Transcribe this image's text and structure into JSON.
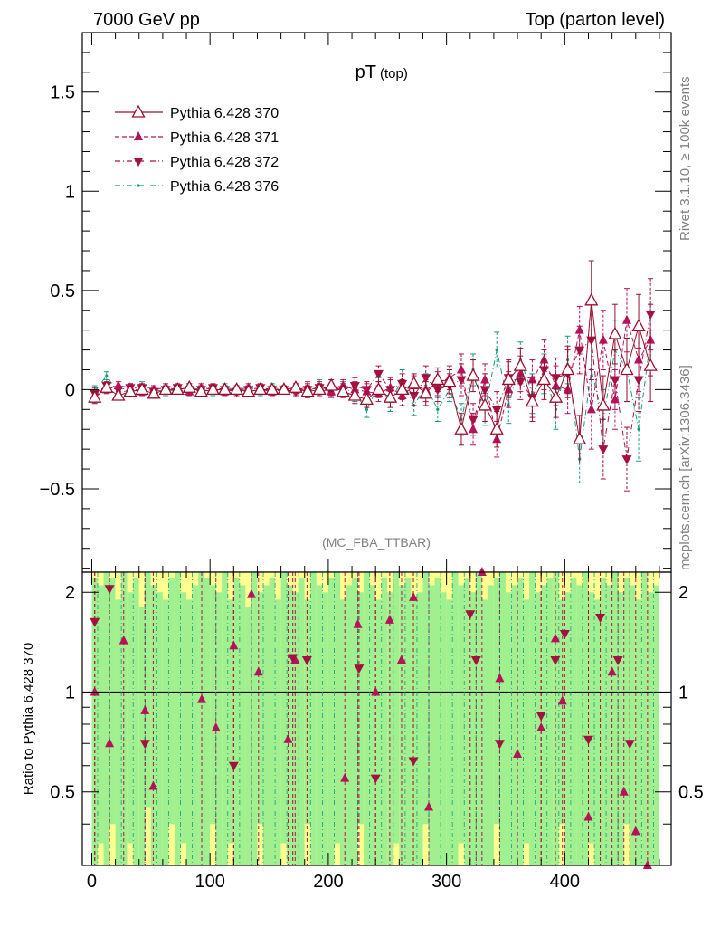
{
  "header": {
    "left": "7000 GeV pp",
    "right": "Top (parton level)"
  },
  "side_labels": {
    "rivet": "Rivet 3.1.10, ≥ 100k events",
    "mcplots": "mcplots.cern.ch [arXiv:1306.3436]"
  },
  "chart_data": {
    "type": "scatter",
    "title": "pT",
    "title_sub": "(top)",
    "watermark": "(MC_FBA_TTBAR)",
    "xlim": [
      -8,
      490
    ],
    "ylim": [
      -0.92,
      1.8
    ],
    "xticks": [
      0,
      100,
      200,
      300,
      400
    ],
    "yticks": [
      -0.5,
      0,
      0.5,
      1,
      1.5
    ],
    "ylabels": [
      "−0.5",
      "0",
      "0.5",
      "1",
      "1.5"
    ],
    "colors": {
      "s370": "#9b0e2e",
      "s371": "#b5125a",
      "s372": "#a3123f",
      "s376": "#169a80",
      "band_green": "#a0f090",
      "band_yellow": "#ffff90"
    },
    "series": [
      {
        "name": "Pythia 6.428 370",
        "marker": "triangle-up-open",
        "line": "solid",
        "x": [
          2.5,
          12.5,
          22.5,
          32.5,
          42.5,
          52.5,
          62.5,
          72.5,
          82.5,
          92.5,
          102.5,
          112.5,
          122.5,
          132.5,
          142.5,
          152.5,
          162.5,
          172.5,
          182.5,
          192.5,
          202.5,
          212.5,
          222.5,
          232.5,
          242.5,
          252.5,
          262.5,
          272.5,
          282.5,
          292.5,
          302.5,
          312.5,
          322.5,
          332.5,
          342.5,
          352.5,
          362.5,
          372.5,
          382.5,
          392.5,
          402.5,
          412.5,
          422.5,
          432.5,
          442.5,
          452.5,
          462.5,
          472.5
        ],
        "values": [
          -0.04,
          0.01,
          -0.03,
          -0.01,
          0.0,
          -0.02,
          0.0,
          0.0,
          0.01,
          -0.01,
          0.0,
          0.0,
          0.0,
          -0.01,
          0.0,
          0.0,
          0.0,
          0.01,
          -0.01,
          0.0,
          0.02,
          -0.01,
          -0.03,
          -0.05,
          0.0,
          -0.04,
          0.0,
          0.03,
          -0.02,
          0.05,
          0.04,
          -0.2,
          0.07,
          -0.08,
          -0.2,
          0.05,
          0.12,
          -0.06,
          0.05,
          -0.04,
          0.1,
          -0.25,
          0.45,
          -0.08,
          0.28,
          0.1,
          0.32,
          0.12
        ],
        "errors": [
          0.03,
          0.02,
          0.02,
          0.02,
          0.02,
          0.02,
          0.02,
          0.02,
          0.02,
          0.02,
          0.02,
          0.02,
          0.02,
          0.02,
          0.02,
          0.02,
          0.02,
          0.02,
          0.03,
          0.03,
          0.03,
          0.03,
          0.04,
          0.04,
          0.04,
          0.05,
          0.05,
          0.05,
          0.06,
          0.06,
          0.06,
          0.08,
          0.08,
          0.08,
          0.09,
          0.09,
          0.09,
          0.1,
          0.1,
          0.1,
          0.12,
          0.12,
          0.2,
          0.15,
          0.15,
          0.16,
          0.16,
          0.18
        ]
      },
      {
        "name": "Pythia 6.428 371",
        "marker": "triangle-up-filled",
        "line": "dashed",
        "x": [
          2.5,
          12.5,
          22.5,
          32.5,
          42.5,
          52.5,
          62.5,
          72.5,
          82.5,
          92.5,
          102.5,
          112.5,
          122.5,
          132.5,
          142.5,
          152.5,
          162.5,
          172.5,
          182.5,
          192.5,
          202.5,
          212.5,
          222.5,
          232.5,
          242.5,
          252.5,
          262.5,
          272.5,
          282.5,
          292.5,
          302.5,
          312.5,
          322.5,
          332.5,
          342.5,
          352.5,
          362.5,
          372.5,
          382.5,
          392.5,
          402.5,
          412.5,
          422.5,
          432.5,
          442.5,
          452.5,
          462.5,
          472.5
        ],
        "values": [
          -0.03,
          0.0,
          0.02,
          0.01,
          -0.01,
          0.0,
          0.01,
          0.0,
          -0.01,
          0.01,
          0.0,
          -0.01,
          0.0,
          0.01,
          0.0,
          -0.01,
          0.0,
          0.0,
          0.01,
          0.0,
          -0.01,
          0.02,
          0.0,
          -0.01,
          -0.02,
          0.01,
          -0.03,
          0.02,
          0.0,
          0.03,
          0.06,
          0.1,
          -0.2,
          0.05,
          -0.25,
          0.0,
          0.08,
          0.05,
          0.15,
          0.02,
          0.0,
          0.3,
          -0.1,
          0.25,
          -0.05,
          0.35,
          0.15,
          0.25
        ],
        "errors": [
          0.03,
          0.02,
          0.02,
          0.02,
          0.02,
          0.02,
          0.02,
          0.02,
          0.02,
          0.02,
          0.02,
          0.02,
          0.02,
          0.02,
          0.02,
          0.02,
          0.02,
          0.02,
          0.03,
          0.03,
          0.03,
          0.03,
          0.04,
          0.04,
          0.04,
          0.05,
          0.05,
          0.05,
          0.06,
          0.06,
          0.06,
          0.08,
          0.08,
          0.08,
          0.09,
          0.09,
          0.09,
          0.1,
          0.1,
          0.1,
          0.12,
          0.12,
          0.2,
          0.15,
          0.15,
          0.16,
          0.16,
          0.18
        ]
      },
      {
        "name": "Pythia 6.428 372",
        "marker": "triangle-down-filled",
        "line": "dashdot",
        "x": [
          2.5,
          12.5,
          22.5,
          32.5,
          42.5,
          52.5,
          62.5,
          72.5,
          82.5,
          92.5,
          102.5,
          112.5,
          122.5,
          132.5,
          142.5,
          152.5,
          162.5,
          172.5,
          182.5,
          192.5,
          202.5,
          212.5,
          222.5,
          232.5,
          242.5,
          252.5,
          262.5,
          272.5,
          282.5,
          292.5,
          302.5,
          312.5,
          322.5,
          332.5,
          342.5,
          352.5,
          362.5,
          372.5,
          382.5,
          392.5,
          402.5,
          412.5,
          422.5,
          432.5,
          442.5,
          452.5,
          462.5,
          472.5
        ],
        "values": [
          -0.02,
          0.02,
          0.0,
          0.01,
          0.01,
          -0.01,
          0.0,
          0.01,
          0.0,
          0.0,
          0.01,
          0.0,
          -0.01,
          0.0,
          0.01,
          0.0,
          0.0,
          -0.01,
          0.0,
          0.01,
          0.0,
          0.0,
          0.02,
          0.0,
          0.08,
          0.0,
          0.03,
          -0.03,
          0.06,
          0.0,
          0.02,
          0.05,
          -0.15,
          0.0,
          -0.1,
          0.06,
          0.04,
          -0.04,
          0.1,
          0.06,
          0.08,
          0.2,
          0.25,
          -0.3,
          0.05,
          -0.35,
          0.05,
          0.38
        ],
        "errors": [
          0.03,
          0.02,
          0.02,
          0.02,
          0.02,
          0.02,
          0.02,
          0.02,
          0.02,
          0.02,
          0.02,
          0.02,
          0.02,
          0.02,
          0.02,
          0.02,
          0.02,
          0.02,
          0.03,
          0.03,
          0.03,
          0.03,
          0.04,
          0.04,
          0.04,
          0.05,
          0.05,
          0.05,
          0.06,
          0.06,
          0.06,
          0.08,
          0.08,
          0.08,
          0.09,
          0.09,
          0.09,
          0.1,
          0.1,
          0.1,
          0.12,
          0.12,
          0.2,
          0.15,
          0.15,
          0.16,
          0.16,
          0.18
        ]
      },
      {
        "name": "Pythia 6.428 376",
        "marker": "dot",
        "line": "dashdot",
        "x": [
          2.5,
          12.5,
          22.5,
          32.5,
          42.5,
          52.5,
          62.5,
          72.5,
          82.5,
          92.5,
          102.5,
          112.5,
          122.5,
          132.5,
          142.5,
          152.5,
          162.5,
          172.5,
          182.5,
          192.5,
          202.5,
          212.5,
          222.5,
          232.5,
          242.5,
          252.5,
          262.5,
          272.5,
          282.5,
          292.5,
          302.5,
          312.5,
          322.5,
          332.5,
          342.5,
          352.5,
          362.5,
          372.5,
          382.5,
          392.5,
          402.5,
          412.5,
          422.5,
          432.5,
          442.5,
          452.5,
          462.5,
          472.5
        ],
        "values": [
          -0.01,
          0.07,
          -0.02,
          0.0,
          0.02,
          0.0,
          -0.01,
          0.0,
          0.01,
          0.0,
          -0.01,
          0.01,
          0.0,
          0.0,
          -0.01,
          0.01,
          0.0,
          0.0,
          -0.01,
          0.02,
          0.0,
          0.01,
          -0.02,
          -0.1,
          0.02,
          -0.06,
          0.05,
          -0.08,
          0.02,
          -0.1,
          0.0,
          -0.15,
          0.1,
          -0.1,
          0.2,
          -0.08,
          0.15,
          -0.02,
          0.08,
          -0.1,
          0.15,
          -0.35,
          0.1,
          -0.15,
          0.2,
          0.1,
          -0.2,
          0.25
        ],
        "errors": [
          0.03,
          0.02,
          0.02,
          0.02,
          0.02,
          0.02,
          0.02,
          0.02,
          0.02,
          0.02,
          0.02,
          0.02,
          0.02,
          0.02,
          0.02,
          0.02,
          0.02,
          0.02,
          0.03,
          0.03,
          0.03,
          0.03,
          0.04,
          0.04,
          0.04,
          0.05,
          0.05,
          0.05,
          0.06,
          0.06,
          0.06,
          0.08,
          0.08,
          0.08,
          0.09,
          0.09,
          0.09,
          0.1,
          0.1,
          0.1,
          0.12,
          0.12,
          0.2,
          0.15,
          0.15,
          0.16,
          0.16,
          0.18
        ]
      }
    ],
    "ratio": {
      "ylabel": "Ratio to Pythia 6.428 370",
      "ylim": [
        0.3,
        2.3
      ],
      "yticks": [
        0.5,
        1,
        2
      ],
      "ylabels": [
        "0.5",
        "1",
        "2"
      ],
      "reference": 1,
      "bins": [
        0,
        5,
        10,
        15,
        20,
        25,
        30,
        35,
        40,
        45,
        50,
        55,
        60,
        65,
        70,
        75,
        80,
        85,
        90,
        95,
        100,
        105,
        110,
        115,
        120,
        125,
        130,
        135,
        140,
        145,
        150,
        155,
        160,
        165,
        170,
        175,
        180,
        185,
        190,
        195,
        200,
        205,
        210,
        215,
        220,
        225,
        230,
        235,
        240,
        245,
        250,
        255,
        260,
        265,
        270,
        275,
        280,
        285,
        290,
        295,
        300,
        305,
        310,
        315,
        320,
        325,
        330,
        335,
        340,
        345,
        350,
        355,
        360,
        365,
        370,
        375,
        380,
        385,
        390,
        395,
        400,
        405,
        410,
        415,
        420,
        425,
        430,
        435,
        440,
        445,
        450,
        455,
        460,
        465,
        470,
        475,
        480
      ],
      "green_band_top": [
        2.2,
        2.1,
        2.3,
        2.2,
        1.9,
        2.3,
        2.0,
        2.2,
        1.8,
        2.3,
        2.1,
        2.0,
        1.9,
        2.2,
        2.3,
        2.0,
        1.9,
        2.1,
        2.3,
        2.2,
        2.1,
        2.0,
        2.3,
        1.9,
        2.2,
        2.1,
        1.8,
        2.3,
        2.0,
        2.1,
        2.2,
        1.9,
        2.3,
        2.1,
        2.0,
        2.2,
        1.9,
        2.3,
        2.1,
        2.0,
        2.2,
        2.3,
        1.9,
        2.1,
        2.2,
        2.0,
        2.3,
        2.1,
        1.9,
        2.2,
        2.0,
        2.3,
        2.1,
        2.2,
        1.9,
        2.0,
        2.3,
        2.1,
        2.2,
        2.0,
        1.9,
        2.3,
        2.1,
        2.2,
        2.0,
        2.3,
        1.9,
        2.1,
        2.2,
        2.3,
        2.0,
        2.1,
        2.2,
        1.9,
        2.3,
        2.0,
        2.1,
        2.2,
        2.3,
        1.9,
        2.0,
        2.2,
        2.1,
        2.3,
        2.0,
        1.9,
        2.2,
        2.1,
        2.3,
        2.0,
        2.2,
        2.1,
        1.9,
        2.3,
        2.0,
        2.1
      ],
      "green_band_bottom": [
        0.3,
        0.35,
        0.3,
        0.4,
        0.3,
        0.3,
        0.35,
        0.3,
        0.3,
        0.45,
        0.3,
        0.3,
        0.3,
        0.4,
        0.3,
        0.35,
        0.3,
        0.3,
        0.3,
        0.3,
        0.4,
        0.3,
        0.3,
        0.35,
        0.3,
        0.3,
        0.3,
        0.3,
        0.4,
        0.3,
        0.3,
        0.3,
        0.35,
        0.3,
        0.3,
        0.3,
        0.4,
        0.3,
        0.3,
        0.3,
        0.3,
        0.35,
        0.3,
        0.3,
        0.3,
        0.4,
        0.3,
        0.3,
        0.3,
        0.3,
        0.3,
        0.35,
        0.3,
        0.3,
        0.3,
        0.3,
        0.4,
        0.3,
        0.3,
        0.3,
        0.3,
        0.3,
        0.35,
        0.3,
        0.3,
        0.3,
        0.3,
        0.3,
        0.4,
        0.3,
        0.3,
        0.3,
        0.3,
        0.35,
        0.3,
        0.3,
        0.3,
        0.3,
        0.3,
        0.4,
        0.3,
        0.3,
        0.3,
        0.3,
        0.35,
        0.3,
        0.3,
        0.3,
        0.3,
        0.3,
        0.4,
        0.3,
        0.3,
        0.3,
        0.3,
        0.3
      ],
      "ratio_371": [
        1.0,
        0.7,
        1.43,
        0.88,
        0.52,
        0.95,
        0.78,
        1.38,
        1.97,
        1.15,
        0.72,
        1.25,
        0.55,
        1.6,
        1.0,
        1.65,
        1.25,
        1.93,
        0.45,
        2.4,
        1.1,
        0.65,
        0.78,
        1.45,
        0.94,
        0.42,
        1.15,
        0.5,
        0.38,
        0.3
      ],
      "ratio_371_x": [
        2.5,
        15,
        27,
        45,
        52,
        93,
        105,
        120,
        135,
        141,
        166,
        172,
        214,
        225,
        240,
        252,
        262,
        272,
        285,
        330,
        345,
        360,
        380,
        392,
        398,
        420,
        440,
        450,
        460,
        470
      ],
      "ratio_372": [
        1.63,
        2.05,
        0.7,
        0.6,
        1.27,
        1.25,
        1.18,
        0.55,
        0.62,
        1.72,
        1.25,
        0.7,
        0.85,
        1.25,
        1.5,
        0.72,
        1.68,
        1.25,
        0.7
      ],
      "ratio_372_x": [
        2.5,
        15,
        45,
        120,
        170,
        182,
        226,
        240,
        272,
        320,
        325,
        345,
        380,
        392,
        400,
        420,
        430,
        445,
        455
      ]
    }
  }
}
